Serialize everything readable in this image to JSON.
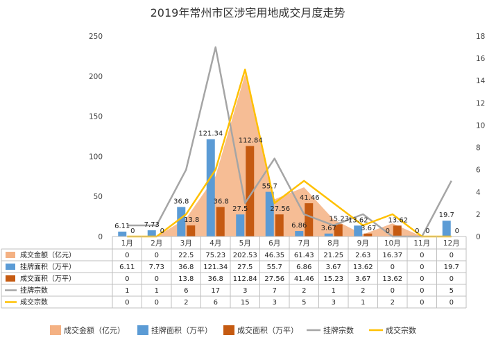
{
  "chart_data": {
    "type": "bar",
    "title": "2019年常州市区涉宅用地成交月度走势",
    "categories": [
      "1月",
      "2月",
      "3月",
      "4月",
      "5月",
      "6月",
      "7月",
      "8月",
      "9月",
      "10月",
      "11月",
      "12月"
    ],
    "y_left": {
      "range": [
        0,
        250
      ],
      "ticks": [
        0,
        50,
        100,
        150,
        200,
        250
      ]
    },
    "y_right": {
      "range": [
        0,
        18
      ],
      "ticks": [
        0,
        2,
        4,
        6,
        8,
        10,
        12,
        14,
        16,
        18
      ]
    },
    "series": [
      {
        "name": "成交金额（亿元）",
        "kind": "area",
        "axis": "left",
        "color": "#F4B183",
        "values": [
          0,
          0,
          22.5,
          75.23,
          202.53,
          46.35,
          61.43,
          21.25,
          2.63,
          16.37,
          0,
          0
        ]
      },
      {
        "name": "挂牌面积（万平）",
        "kind": "bar",
        "axis": "left",
        "color": "#5B9BD5",
        "values": [
          6.11,
          7.73,
          36.8,
          121.34,
          27.5,
          55.7,
          6.86,
          3.67,
          13.62,
          0,
          0,
          19.7
        ]
      },
      {
        "name": "成交面积（万平）",
        "kind": "bar",
        "axis": "left",
        "color": "#C55A11",
        "values": [
          0,
          0,
          13.8,
          36.8,
          112.84,
          27.56,
          41.46,
          15.23,
          3.67,
          13.62,
          0,
          0
        ]
      },
      {
        "name": "挂牌宗数",
        "kind": "line",
        "axis": "right",
        "color": "#A5A5A5",
        "values": [
          1,
          1,
          6,
          17,
          3,
          7,
          2,
          1,
          2,
          0,
          0,
          5
        ]
      },
      {
        "name": "成交宗数",
        "kind": "line",
        "axis": "right",
        "color": "#FFC000",
        "values": [
          0,
          0,
          2,
          6,
          15,
          3,
          5,
          3,
          1,
          2,
          0,
          0
        ]
      }
    ],
    "bar_labels": {
      "listed_area": [
        "6.11",
        "7.73",
        "36.8",
        "121.34",
        "27.5",
        "55.7",
        "6.86",
        "3.67",
        "13.62",
        "0",
        "0",
        "19.7"
      ],
      "sold_area": [
        "0",
        "0",
        "13.8",
        "36.8",
        "112.84",
        "27.56",
        "41.46",
        "15.23",
        "3.67",
        "13.62",
        "0",
        "0"
      ]
    },
    "grid": false,
    "legend": "bottom",
    "data_table": true
  }
}
